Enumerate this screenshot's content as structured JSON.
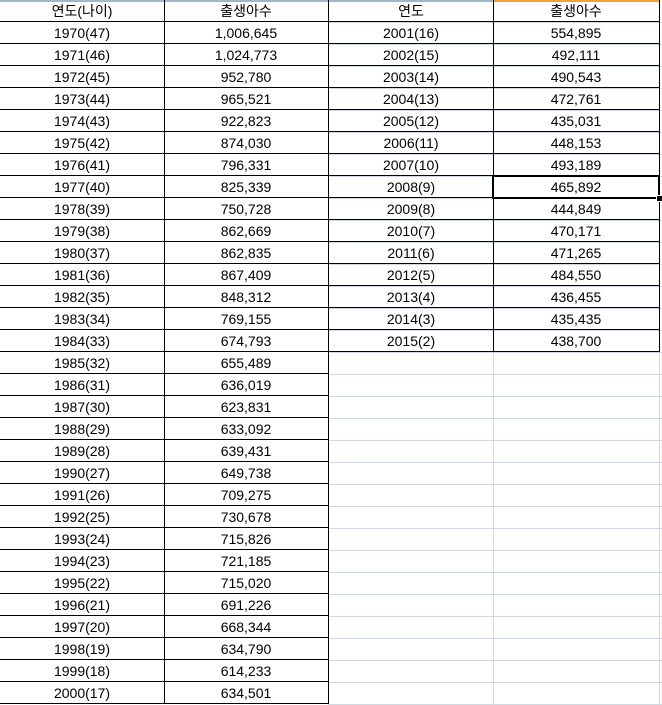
{
  "left_table": {
    "headers": [
      "연도(나이)",
      "출생아수"
    ],
    "rows": [
      [
        "1970(47)",
        "1,006,645"
      ],
      [
        "1971(46)",
        "1,024,773"
      ],
      [
        "1972(45)",
        "952,780"
      ],
      [
        "1973(44)",
        "965,521"
      ],
      [
        "1974(43)",
        "922,823"
      ],
      [
        "1975(42)",
        "874,030"
      ],
      [
        "1976(41)",
        "796,331"
      ],
      [
        "1977(40)",
        "825,339"
      ],
      [
        "1978(39)",
        "750,728"
      ],
      [
        "1979(38)",
        "862,669"
      ],
      [
        "1980(37)",
        "862,835"
      ],
      [
        "1981(36)",
        "867,409"
      ],
      [
        "1982(35)",
        "848,312"
      ],
      [
        "1983(34)",
        "769,155"
      ],
      [
        "1984(33)",
        "674,793"
      ],
      [
        "1985(32)",
        "655,489"
      ],
      [
        "1986(31)",
        "636,019"
      ],
      [
        "1987(30)",
        "623,831"
      ],
      [
        "1988(29)",
        "633,092"
      ],
      [
        "1989(28)",
        "639,431"
      ],
      [
        "1990(27)",
        "649,738"
      ],
      [
        "1991(26)",
        "709,275"
      ],
      [
        "1992(25)",
        "730,678"
      ],
      [
        "1993(24)",
        "715,826"
      ],
      [
        "1994(23)",
        "721,185"
      ],
      [
        "1995(22)",
        "715,020"
      ],
      [
        "1996(21)",
        "691,226"
      ],
      [
        "1997(20)",
        "668,344"
      ],
      [
        "1998(19)",
        "634,790"
      ],
      [
        "1999(18)",
        "614,233"
      ],
      [
        "2000(17)",
        "634,501"
      ]
    ]
  },
  "right_table": {
    "headers": [
      "연도",
      "출생아수"
    ],
    "rows": [
      [
        "2001(16)",
        "554,895"
      ],
      [
        "2002(15)",
        "492,111"
      ],
      [
        "2003(14)",
        "490,543"
      ],
      [
        "2004(13)",
        "472,761"
      ],
      [
        "2005(12)",
        "435,031"
      ],
      [
        "2006(11)",
        "448,153"
      ],
      [
        "2007(10)",
        "493,189"
      ],
      [
        "2008(9)",
        "465,892"
      ],
      [
        "2009(8)",
        "444,849"
      ],
      [
        "2010(7)",
        "470,171"
      ],
      [
        "2011(6)",
        "471,265"
      ],
      [
        "2012(5)",
        "484,550"
      ],
      [
        "2013(4)",
        "436,455"
      ],
      [
        "2014(3)",
        "435,435"
      ],
      [
        "2015(2)",
        "438,700"
      ]
    ]
  },
  "selection": {
    "table": "right_table",
    "row": 7,
    "column": 1
  },
  "colors": {
    "border": "#000000",
    "gridline": "#d0d7e5",
    "selected_column_header": "#f2a139",
    "header_topbar": "#9eb6ce"
  }
}
